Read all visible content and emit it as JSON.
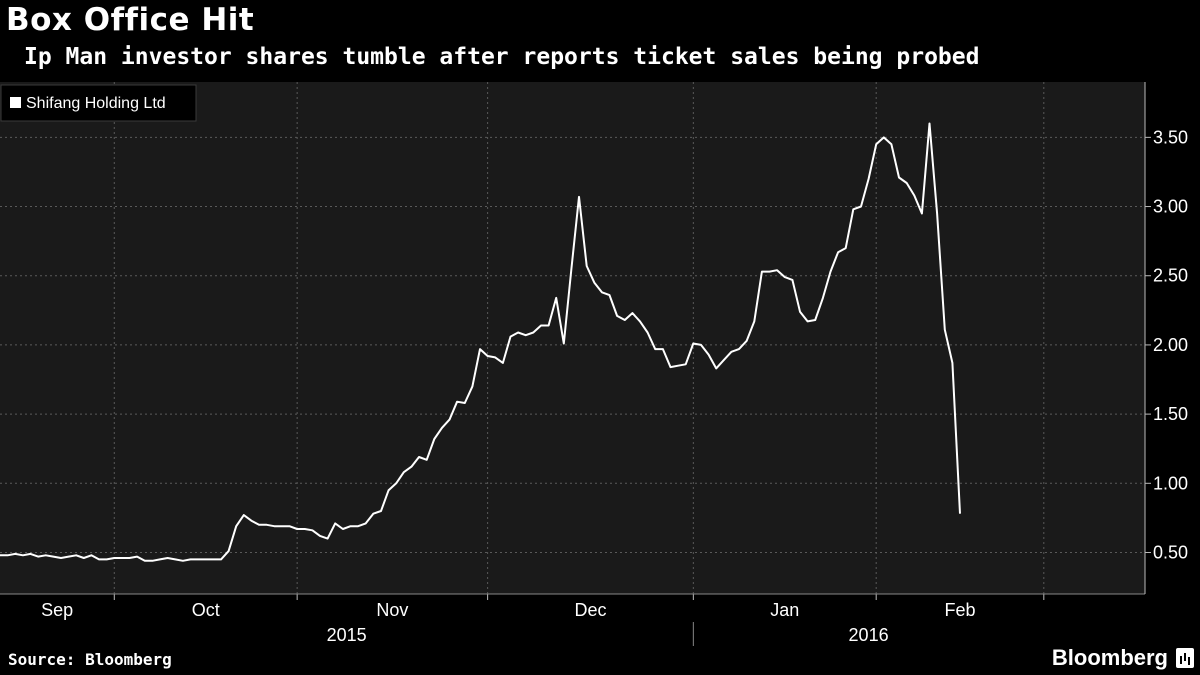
{
  "header": {
    "title": "Box Office Hit",
    "subtitle": "Ip Man investor shares tumble after reports ticket sales being probed"
  },
  "footer": {
    "source": "Source: Bloomberg",
    "brand": "Bloomberg"
  },
  "colors": {
    "background": "#000000",
    "plot_background": "#1a1a1a",
    "line": "#ffffff",
    "grid": "#5a5a5a"
  },
  "chart_data": {
    "type": "line",
    "title": "Box Office Hit",
    "subtitle": "Ip Man investor shares tumble after reports ticket sales being probed",
    "xlabel": "",
    "ylabel": "",
    "ylim": [
      0.2,
      3.9
    ],
    "y_ticks": [
      0.5,
      1.0,
      1.5,
      2.0,
      2.5,
      3.0,
      3.5
    ],
    "y_tick_labels": [
      "0.50",
      "1.00",
      "1.50",
      "2.00",
      "2.50",
      "3.00",
      "3.50"
    ],
    "x_index_range": [
      0,
      147
    ],
    "months": [
      {
        "label": "Sep",
        "start": 0,
        "end": 15
      },
      {
        "label": "Oct",
        "start": 15,
        "end": 39
      },
      {
        "label": "Nov",
        "start": 39,
        "end": 64
      },
      {
        "label": "Dec",
        "start": 64,
        "end": 91
      },
      {
        "label": "Jan",
        "start": 91,
        "end": 115
      },
      {
        "label": "Feb",
        "start": 115,
        "end": 137
      }
    ],
    "years": [
      {
        "label": "2015",
        "start": 0,
        "end": 91
      },
      {
        "label": "2016",
        "start": 91,
        "end": 137
      }
    ],
    "legend": {
      "label": "Shifang Holding Ltd",
      "position": "top-left"
    },
    "grid": true,
    "series": [
      {
        "name": "Shifang Holding Ltd",
        "values": [
          0.48,
          0.48,
          0.49,
          0.48,
          0.49,
          0.47,
          0.48,
          0.47,
          0.46,
          0.47,
          0.48,
          0.46,
          0.48,
          0.45,
          0.45,
          0.46,
          0.46,
          0.46,
          0.47,
          0.44,
          0.44,
          0.45,
          0.46,
          0.45,
          0.44,
          0.45,
          0.45,
          0.45,
          0.45,
          0.45,
          0.51,
          0.69,
          0.77,
          0.73,
          0.7,
          0.7,
          0.69,
          0.69,
          0.69,
          0.67,
          0.67,
          0.66,
          0.62,
          0.6,
          0.71,
          0.67,
          0.69,
          0.69,
          0.71,
          0.78,
          0.8,
          0.95,
          1.0,
          1.08,
          1.12,
          1.19,
          1.17,
          1.32,
          1.4,
          1.46,
          1.59,
          1.58,
          1.7,
          1.97,
          1.92,
          1.91,
          1.87,
          2.06,
          2.09,
          2.07,
          2.09,
          2.14,
          2.14,
          2.34,
          2.01,
          2.55,
          3.07,
          2.57,
          2.45,
          2.38,
          2.36,
          2.21,
          2.18,
          2.23,
          2.17,
          2.09,
          1.97,
          1.97,
          1.84,
          1.85,
          1.86,
          2.01,
          2.0,
          1.93,
          1.83,
          1.89,
          1.95,
          1.97,
          2.03,
          2.17,
          2.53,
          2.53,
          2.54,
          2.49,
          2.47,
          2.24,
          2.17,
          2.18,
          2.34,
          2.53,
          2.67,
          2.7,
          2.98,
          3.0,
          3.2,
          3.45,
          3.5,
          3.45,
          3.21,
          3.17,
          3.08,
          2.95,
          3.6,
          2.95,
          2.11,
          1.87,
          0.78
        ]
      }
    ]
  }
}
